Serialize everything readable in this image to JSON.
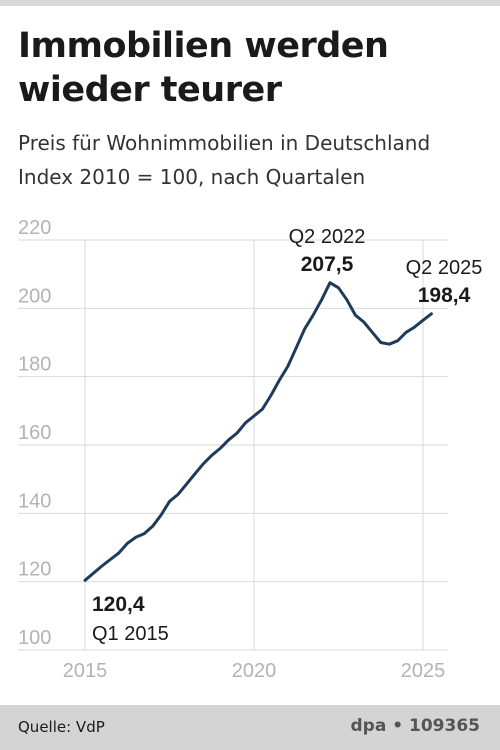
{
  "header": {
    "title_line1": "Immobilien werden",
    "title_line2": "wieder teurer",
    "subtitle_line1": "Preis für Wohnimmobilien in Deutschland",
    "subtitle_line2": "Index 2010 = 100, nach Quartalen"
  },
  "footer": {
    "source": "Quelle: VdP",
    "credit": "dpa • 109365"
  },
  "chart_data": {
    "type": "line",
    "title": "Immobilien werden wieder teurer",
    "subtitle": "Preis für Wohnimmobilien in Deutschland, Index 2010 = 100, nach Quartalen",
    "xlabel": "",
    "ylabel": "",
    "xlim": [
      2015,
      2026
    ],
    "ylim": [
      100,
      220
    ],
    "yticks": [
      100,
      120,
      140,
      160,
      180,
      200,
      220
    ],
    "ytick_labels": [
      "100",
      "120",
      "140",
      "160",
      "180",
      "200",
      "220"
    ],
    "xticks": [
      2015,
      2020,
      2025
    ],
    "xtick_labels": [
      "2015",
      "2020",
      "2025"
    ],
    "grid": true,
    "colors": {
      "line": "#1f3b5c",
      "grid": "#d9d9d9",
      "tick_label": "#b3b3b3"
    },
    "series": [
      {
        "x": [
          "Q1 2015",
          "Q2 2015",
          "Q3 2015",
          "Q4 2015",
          "Q1 2016",
          "Q2 2016",
          "Q3 2016",
          "Q4 2016",
          "Q1 2017",
          "Q2 2017",
          "Q3 2017",
          "Q4 2017",
          "Q1 2018",
          "Q2 2018",
          "Q3 2018",
          "Q4 2018",
          "Q1 2019",
          "Q2 2019",
          "Q3 2019",
          "Q4 2019",
          "Q1 2020",
          "Q2 2020",
          "Q3 2020",
          "Q4 2020",
          "Q1 2021",
          "Q2 2021",
          "Q3 2021",
          "Q4 2021",
          "Q1 2022",
          "Q2 2022",
          "Q3 2022",
          "Q4 2022",
          "Q1 2023",
          "Q2 2023",
          "Q3 2023",
          "Q4 2023",
          "Q1 2024",
          "Q2 2024",
          "Q3 2024",
          "Q4 2024",
          "Q1 2025",
          "Q2 2025"
        ],
        "values": [
          120.4,
          122.5,
          124.6,
          126.5,
          128.4,
          131.2,
          133.0,
          134.0,
          136.2,
          139.5,
          143.5,
          145.5,
          148.5,
          151.5,
          154.5,
          157.0,
          159.0,
          161.5,
          163.5,
          166.5,
          168.5,
          170.5,
          174.5,
          179.0,
          183.0,
          188.5,
          194.0,
          198.0,
          202.5,
          207.5,
          206.0,
          202.5,
          198.0,
          196.0,
          193.0,
          190.0,
          189.5,
          190.5,
          193.0,
          194.5,
          196.5,
          198.4
        ]
      }
    ],
    "annotations": [
      {
        "point": "Q1 2015",
        "value_label": "120,4",
        "period_label": "Q1 2015"
      },
      {
        "point": "Q2 2022",
        "value_label": "207,5",
        "period_label": "Q2 2022"
      },
      {
        "point": "Q2 2025",
        "value_label": "198,4",
        "period_label": "Q2 2025"
      }
    ]
  }
}
